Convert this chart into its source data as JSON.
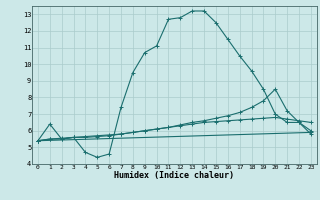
{
  "xlabel": "Humidex (Indice chaleur)",
  "bg_color": "#cce8e8",
  "grid_color": "#aacccc",
  "line_color": "#1a6e6e",
  "xlim": [
    -0.5,
    23.5
  ],
  "ylim": [
    4,
    13.5
  ],
  "yticks": [
    4,
    5,
    6,
    7,
    8,
    9,
    10,
    11,
    12,
    13
  ],
  "xticks": [
    0,
    1,
    2,
    3,
    4,
    5,
    6,
    7,
    8,
    9,
    10,
    11,
    12,
    13,
    14,
    15,
    16,
    17,
    18,
    19,
    20,
    21,
    22,
    23
  ],
  "line1_x": [
    0,
    1,
    2,
    3,
    4,
    5,
    6,
    7,
    8,
    9,
    10,
    11,
    12,
    13,
    14,
    15,
    16,
    17,
    18,
    19,
    20,
    21,
    22,
    23
  ],
  "line1_y": [
    5.4,
    6.4,
    5.5,
    5.6,
    4.7,
    4.4,
    4.6,
    7.4,
    9.5,
    10.7,
    11.1,
    12.7,
    12.8,
    13.2,
    13.2,
    12.5,
    11.5,
    10.5,
    9.6,
    8.5,
    7.0,
    6.5,
    6.5,
    5.8
  ],
  "line2_x": [
    0,
    1,
    2,
    3,
    4,
    5,
    6,
    7,
    8,
    9,
    10,
    11,
    12,
    13,
    14,
    15,
    16,
    17,
    18,
    19,
    20,
    21,
    22,
    23
  ],
  "line2_y": [
    5.4,
    5.5,
    5.5,
    5.6,
    5.6,
    5.65,
    5.7,
    5.8,
    5.9,
    6.0,
    6.1,
    6.2,
    6.35,
    6.5,
    6.6,
    6.75,
    6.9,
    7.1,
    7.4,
    7.8,
    8.5,
    7.2,
    6.5,
    6.0
  ],
  "line3_x": [
    0,
    23
  ],
  "line3_y": [
    5.4,
    5.9
  ],
  "line4_x": [
    0,
    1,
    2,
    3,
    4,
    5,
    6,
    7,
    8,
    9,
    10,
    11,
    12,
    13,
    14,
    15,
    16,
    17,
    18,
    19,
    20,
    21,
    22,
    23
  ],
  "line4_y": [
    5.4,
    5.5,
    5.55,
    5.6,
    5.65,
    5.7,
    5.75,
    5.8,
    5.9,
    6.0,
    6.1,
    6.2,
    6.3,
    6.4,
    6.5,
    6.55,
    6.6,
    6.65,
    6.7,
    6.75,
    6.8,
    6.7,
    6.6,
    6.5
  ]
}
